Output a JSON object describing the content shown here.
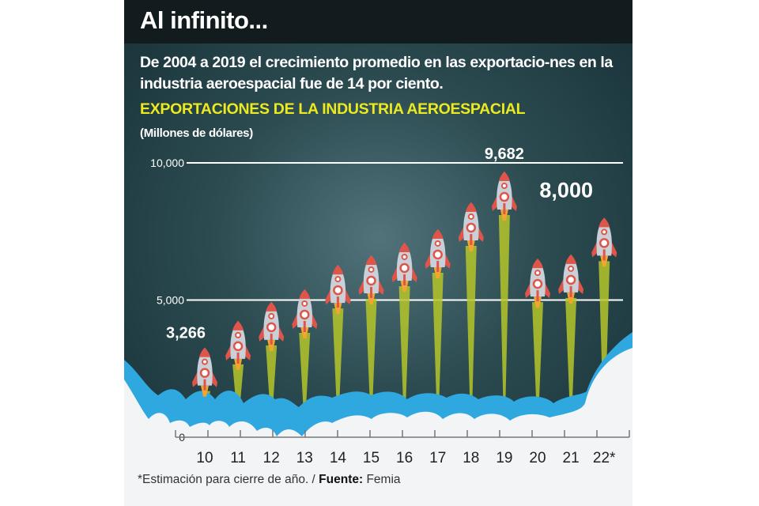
{
  "header": {
    "title": "Al infinito..."
  },
  "subtitle": "De 2004 a 2019 el crecimiento promedio en las exportacio-nes en la industria aeroespacial fue de 14 por ciento.",
  "footer": {
    "note": "*Estimación para cierre de año. / ",
    "source_label": "Fuente:",
    "source": " Femia"
  },
  "colors": {
    "header": "#121b1e",
    "title_yellow": "#ecea1e",
    "cloud_blue": "#2fa8e0",
    "cloud_white": "#f3f4f6",
    "flame": "#b5c629",
    "rocket_red": "#e0554a"
  },
  "chart_data": {
    "type": "bar",
    "title": "EXPORTACIONES DE LA INDUSTRIA AEROESPACIAL",
    "ylabel": "(Millones de dólares)",
    "xlabel": "",
    "ylim": [
      0,
      10000
    ],
    "yticks": [
      {
        "value": 0,
        "label": "0"
      },
      {
        "value": 5000,
        "label": "5,000"
      },
      {
        "value": 10000,
        "label": "10,000"
      }
    ],
    "categories": [
      "10",
      "11",
      "12",
      "13",
      "14",
      "15",
      "16",
      "17",
      "18",
      "19",
      "20",
      "21",
      "22*"
    ],
    "values": [
      3266,
      4240,
      4930,
      5390,
      6280,
      6630,
      7090,
      7580,
      8560,
      9682,
      6510,
      6660,
      8000
    ],
    "data_labels": [
      {
        "index": 0,
        "label": "3,266"
      },
      {
        "index": 9,
        "label": "9,682"
      },
      {
        "index": 12,
        "label": "8,000"
      }
    ],
    "grid": true,
    "legend": "none"
  }
}
